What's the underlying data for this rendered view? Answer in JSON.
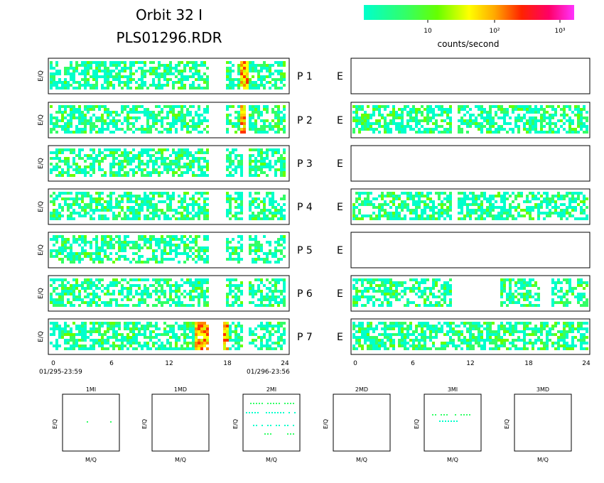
{
  "header": {
    "title_line1": "Orbit 32 I",
    "title_line2": "PLS01296.RDR"
  },
  "colorbar": {
    "label": "counts/second",
    "ticks": [
      "10",
      "10²",
      "10³"
    ],
    "colors": [
      "#00ffcc",
      "#33ff66",
      "#66ff00",
      "#ccff00",
      "#ffff00",
      "#ffcc00",
      "#ff8800",
      "#ff3300",
      "#ff0033",
      "#ff0099",
      "#ff00cc",
      "#ff33ff"
    ]
  },
  "chart_data": {
    "type": "heatmap",
    "y_axis_label": "E/Q",
    "x_axis": {
      "range": [
        0,
        24
      ],
      "ticks": [
        "0",
        "6",
        "12",
        "18",
        "24"
      ],
      "start_label": "01/295-23:59",
      "end_label": "01/296-23:56"
    },
    "left_panels": [
      {
        "row": "P 1",
        "active": [
          [
            0,
            10.2
          ],
          [
            10.2,
            16
          ],
          [
            17.8,
            19.6
          ],
          [
            20,
            24
          ]
        ],
        "hot": [
          [
            19.3,
            20
          ]
        ]
      },
      {
        "row": "P 2",
        "active": [
          [
            0,
            10.2
          ],
          [
            10.2,
            16
          ],
          [
            17.8,
            19.6
          ],
          [
            20,
            24
          ]
        ],
        "hot": [
          [
            19.2,
            19.8
          ]
        ]
      },
      {
        "row": "P 3",
        "active": [
          [
            0,
            10.2
          ],
          [
            10.2,
            16
          ],
          [
            17.8,
            19.6
          ],
          [
            20,
            24
          ]
        ],
        "hot": []
      },
      {
        "row": "P 4",
        "active": [
          [
            0,
            10.2
          ],
          [
            10.2,
            16
          ],
          [
            17.8,
            19.6
          ],
          [
            20,
            24
          ]
        ],
        "hot": []
      },
      {
        "row": "P 5",
        "active": [
          [
            0,
            10.2
          ],
          [
            10.2,
            16
          ],
          [
            17.8,
            19.6
          ],
          [
            20,
            24
          ]
        ],
        "hot": []
      },
      {
        "row": "P 6",
        "active": [
          [
            0,
            10.2
          ],
          [
            10.2,
            16
          ],
          [
            17.8,
            19.6
          ],
          [
            20,
            24
          ]
        ],
        "hot": []
      },
      {
        "row": "P 7",
        "active": [
          [
            0,
            10.2
          ],
          [
            10.2,
            16
          ],
          [
            17.8,
            19.6
          ],
          [
            20,
            24
          ]
        ],
        "hot": [
          [
            14.5,
            16
          ],
          [
            17.5,
            18.2
          ]
        ]
      }
    ],
    "right_panels": [
      {
        "row": "E",
        "active": [],
        "hot": []
      },
      {
        "row": "E",
        "active": [
          [
            0,
            10
          ],
          [
            10.5,
            20
          ],
          [
            20,
            24
          ]
        ],
        "hot": []
      },
      {
        "row": "E",
        "active": [],
        "hot": []
      },
      {
        "row": "E",
        "active": [
          [
            0,
            10
          ],
          [
            10.5,
            20
          ],
          [
            20,
            24
          ]
        ],
        "hot": []
      },
      {
        "row": "E",
        "active": [],
        "hot": []
      },
      {
        "row": "E",
        "active": [
          [
            0,
            10
          ],
          [
            15,
            19
          ],
          [
            20,
            24
          ]
        ],
        "hot": []
      },
      {
        "row": "E",
        "active": [
          [
            0,
            24
          ]
        ],
        "hot": []
      }
    ]
  },
  "mini_panels": {
    "x_label": "M/Q",
    "y_label": "E/Q",
    "titles": [
      "1MI",
      "1MD",
      "2MI",
      "2MD",
      "3MI",
      "3MD"
    ]
  }
}
